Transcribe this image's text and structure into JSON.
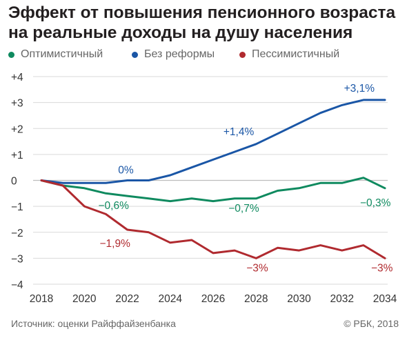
{
  "title_line1": "Эффект от повышения пенсионного возраста",
  "title_line2": "на реальные доходы на душу населения",
  "legend": [
    {
      "label": "Оптимистичный",
      "color": "#0f8a5f"
    },
    {
      "label": "Без реформы",
      "color": "#1a56a6"
    },
    {
      "label": "Пессимистичный",
      "color": "#b02a2f"
    }
  ],
  "source": "Источник: оценки Райффайзенбанка",
  "copyright": "© РБК, 2018",
  "chart_data": {
    "type": "line",
    "title": "Эффект от повышения пенсионного возраста на реальные доходы на душу населения",
    "x": [
      2018,
      2019,
      2020,
      2021,
      2022,
      2023,
      2024,
      2025,
      2026,
      2027,
      2028,
      2029,
      2030,
      2031,
      2032,
      2033,
      2034
    ],
    "xticks": [
      "2018",
      "2020",
      "2022",
      "2024",
      "2026",
      "2028",
      "2030",
      "2032",
      "2034"
    ],
    "yticks": [
      "+4",
      "+3",
      "+2",
      "+1",
      "0",
      "−1",
      "−2",
      "−3",
      "−4"
    ],
    "ylim": [
      -4,
      4
    ],
    "grid": true,
    "legend_position": "top",
    "series": [
      {
        "name": "Оптимистичный",
        "color": "#0f8a5f",
        "values": [
          0,
          -0.2,
          -0.3,
          -0.5,
          -0.6,
          -0.7,
          -0.8,
          -0.7,
          -0.8,
          -0.7,
          -0.7,
          -0.4,
          -0.3,
          -0.1,
          -0.1,
          0.1,
          -0.3
        ]
      },
      {
        "name": "Без реформы",
        "color": "#1a56a6",
        "values": [
          0,
          -0.1,
          -0.1,
          -0.1,
          0,
          0,
          0.2,
          0.5,
          0.8,
          1.1,
          1.4,
          1.8,
          2.2,
          2.6,
          2.9,
          3.1,
          3.1
        ]
      },
      {
        "name": "Пессимистичный",
        "color": "#b02a2f",
        "values": [
          0,
          -0.2,
          -1.0,
          -1.3,
          -1.9,
          -2.0,
          -2.4,
          -2.3,
          -2.8,
          -2.7,
          -3.0,
          -2.6,
          -2.7,
          -2.5,
          -2.7,
          -2.5,
          -3.0
        ]
      }
    ],
    "annotations": [
      {
        "text": "+3,1%",
        "x": 2034,
        "y": 3.1,
        "series": 1
      },
      {
        "text": "+1,4%",
        "x": 2028,
        "y": 1.4,
        "series": 1
      },
      {
        "text": "0%",
        "x": 2022,
        "y": 0,
        "series": 1
      },
      {
        "text": "−0,6%",
        "x": 2022,
        "y": -0.6,
        "series": 0
      },
      {
        "text": "−0,7%",
        "x": 2028,
        "y": -0.7,
        "series": 0
      },
      {
        "text": "−0,3%",
        "x": 2034,
        "y": -0.3,
        "series": 0
      },
      {
        "text": "−1,9%",
        "x": 2022,
        "y": -1.9,
        "series": 2
      },
      {
        "text": "−3%",
        "x": 2028,
        "y": -3.0,
        "series": 2
      },
      {
        "text": "−3%",
        "x": 2034,
        "y": -3.0,
        "series": 2
      }
    ]
  }
}
